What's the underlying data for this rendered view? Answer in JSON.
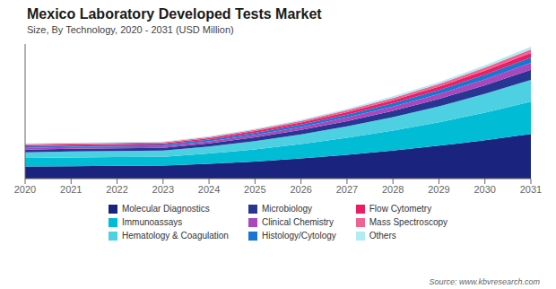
{
  "chart_data": {
    "type": "area",
    "title": "Mexico Laboratory Developed Tests Market",
    "subtitle": "Size, By Technology, 2020 - 2031 (USD Million)",
    "annotations": [
      "Source: www.kbvresearch.com"
    ],
    "x": [
      2020,
      2021,
      2022,
      2023,
      2024,
      2025,
      2026,
      2027,
      2028,
      2029,
      2030,
      2031
    ],
    "series": [
      {
        "name": "Molecular Diagnostics",
        "color": "#1a237e",
        "values": [
          100,
          103,
          105,
          107,
          122,
          142,
          167,
          197,
          232,
          272,
          318,
          370
        ]
      },
      {
        "name": "Immunoassays",
        "color": "#00bcd4",
        "values": [
          70,
          72,
          73,
          74,
          85,
          100,
          118,
          140,
          165,
          194,
          228,
          266
        ]
      },
      {
        "name": "Hematology & Coagulation",
        "color": "#4dd0e1",
        "values": [
          48,
          49,
          50,
          51,
          58,
          68,
          80,
          95,
          112,
          132,
          155,
          181
        ]
      },
      {
        "name": "Microbiology",
        "color": "#283593",
        "values": [
          22,
          22,
          23,
          23,
          26,
          31,
          37,
          44,
          52,
          61,
          72,
          84
        ]
      },
      {
        "name": "Clinical Chemistry",
        "color": "#ab47bc",
        "values": [
          15,
          15,
          15,
          15,
          18,
          21,
          25,
          30,
          35,
          41,
          48,
          56
        ]
      },
      {
        "name": "Histology/Cytology",
        "color": "#1976d2",
        "values": [
          12,
          12,
          12,
          12,
          14,
          17,
          20,
          24,
          28,
          33,
          39,
          45
        ]
      },
      {
        "name": "Flow Cytometry",
        "color": "#e91e63",
        "values": [
          10,
          10,
          10,
          10,
          12,
          14,
          17,
          20,
          24,
          28,
          33,
          38
        ]
      },
      {
        "name": "Mass Spectroscopy",
        "color": "#f06292",
        "values": [
          8,
          8,
          8,
          8,
          9,
          11,
          13,
          16,
          19,
          22,
          26,
          30
        ]
      },
      {
        "name": "Others",
        "color": "#b2ebf2",
        "values": [
          6,
          6,
          6,
          6,
          7,
          8,
          10,
          12,
          14,
          16,
          19,
          22
        ]
      }
    ],
    "xlim": [
      2020,
      2031
    ],
    "xticks": [
      2020,
      2021,
      2022,
      2023,
      2024,
      2025,
      2026,
      2027,
      2028,
      2029,
      2030,
      2031
    ],
    "ylim": [
      0,
      1113.84
    ],
    "stacked": true,
    "grid": false,
    "legend": "bottom",
    "tick_labels": "x"
  }
}
